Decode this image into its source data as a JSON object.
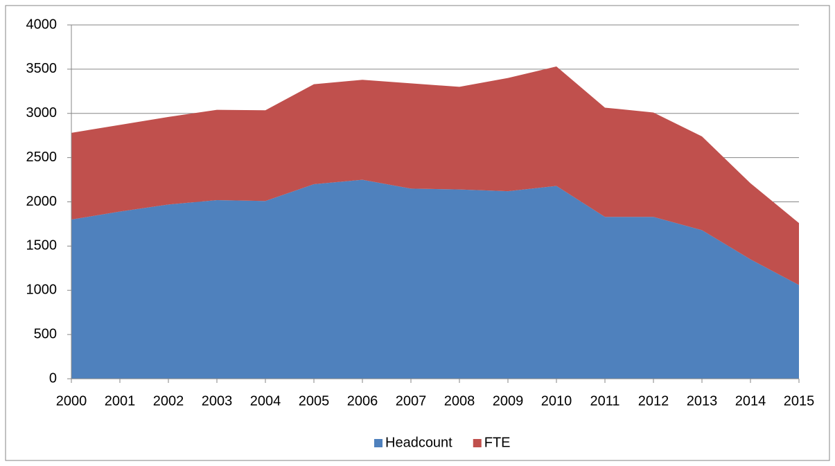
{
  "chart_data": {
    "type": "stacked_area",
    "categories": [
      "2000",
      "2001",
      "2002",
      "2003",
      "2004",
      "2005",
      "2006",
      "2007",
      "2008",
      "2009",
      "2010",
      "2011",
      "2012",
      "2013",
      "2014",
      "2015"
    ],
    "series": [
      {
        "name": "Headcount",
        "color": "#4f81bd",
        "values": [
          1800,
          1890,
          1970,
          2020,
          2010,
          2200,
          2250,
          2150,
          2140,
          2120,
          2180,
          1830,
          1830,
          1680,
          1350,
          1060
        ]
      },
      {
        "name": "FTE",
        "color": "#c0504d",
        "values": [
          980,
          980,
          990,
          1020,
          1025,
          1130,
          1130,
          1190,
          1160,
          1280,
          1350,
          1235,
          1180,
          1060,
          860,
          700
        ]
      }
    ],
    "ylim": [
      0,
      4000
    ],
    "yticks": [
      0,
      500,
      1000,
      1500,
      2000,
      2500,
      3000,
      3500,
      4000
    ],
    "grid": true,
    "legend": "bottom"
  }
}
